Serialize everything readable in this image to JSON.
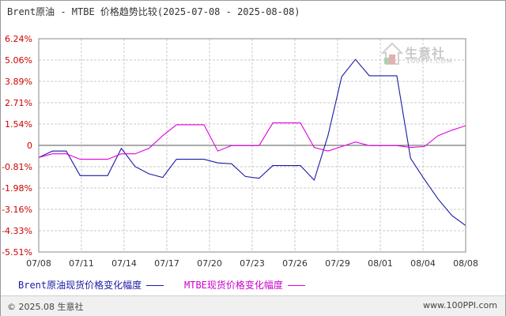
{
  "title": "Brent原油 - MTBE 价格趋势比较(2025-07-08 - 2025-08-08)",
  "footer": {
    "copyright": "© 2025.08 生意社",
    "website": "www.100PPI.com"
  },
  "watermark": {
    "name": "生意社",
    "sub": "100PPI.COM"
  },
  "colors": {
    "brent": "#1a1aa6",
    "mtbe": "#e000e0",
    "grid": "#c8c8c8",
    "zero_line": "#555555"
  },
  "chart_data": {
    "type": "line",
    "title": "Brent原油 - MTBE 价格趋势比较(2025-07-08 - 2025-08-08)",
    "x_ticks": [
      "07/08",
      "07/11",
      "07/14",
      "07/17",
      "07/20",
      "07/23",
      "07/26",
      "07/29",
      "08/01",
      "08/04",
      "08/08"
    ],
    "y_ticks": [
      "6.24%",
      "5.06%",
      "3.89%",
      "2.71%",
      "1.54%",
      "0",
      "-0.81%",
      "-1.98%",
      "-3.16%",
      "-4.33%",
      "-5.51%"
    ],
    "ylim": [
      -5.51,
      6.24
    ],
    "xlim": [
      "2025-07-08",
      "2025-08-08"
    ],
    "grid": true,
    "legend_position": "bottom",
    "series": [
      {
        "name": "Brent原油现货价格变化幅度",
        "color": "#1a1aa6",
        "points": [
          [
            "2025-07-08",
            -0.3
          ],
          [
            "2025-07-09",
            0.05
          ],
          [
            "2025-07-10",
            0.05
          ],
          [
            "2025-07-11",
            -1.3
          ],
          [
            "2025-07-12",
            -1.3
          ],
          [
            "2025-07-13",
            -1.3
          ],
          [
            "2025-07-14",
            0.2
          ],
          [
            "2025-07-15",
            -0.8
          ],
          [
            "2025-07-16",
            -1.2
          ],
          [
            "2025-07-17",
            -1.4
          ],
          [
            "2025-07-18",
            -0.4
          ],
          [
            "2025-07-19",
            -0.4
          ],
          [
            "2025-07-20",
            -0.4
          ],
          [
            "2025-07-21",
            -0.6
          ],
          [
            "2025-07-22",
            -0.65
          ],
          [
            "2025-07-23",
            -1.35
          ],
          [
            "2025-07-24",
            -1.45
          ],
          [
            "2025-07-25",
            -0.75
          ],
          [
            "2025-07-26",
            -0.75
          ],
          [
            "2025-07-27",
            -0.75
          ],
          [
            "2025-07-28",
            -1.55
          ],
          [
            "2025-07-29",
            0.9
          ],
          [
            "2025-07-30",
            4.15
          ],
          [
            "2025-07-31",
            5.1
          ],
          [
            "2025-08-01",
            4.2
          ],
          [
            "2025-08-02",
            4.2
          ],
          [
            "2025-08-03",
            4.2
          ],
          [
            "2025-08-04",
            -0.35
          ],
          [
            "2025-08-05",
            -1.5
          ],
          [
            "2025-08-06",
            -2.6
          ],
          [
            "2025-08-07",
            -3.5
          ],
          [
            "2025-08-08",
            -4.05
          ],
          [
            "2025-08-09",
            -4.5
          ]
        ]
      },
      {
        "name": "MTBE现货价格变化幅度",
        "color": "#e000e0",
        "points": [
          [
            "2025-07-08",
            -0.3
          ],
          [
            "2025-07-09",
            -0.1
          ],
          [
            "2025-07-10",
            -0.1
          ],
          [
            "2025-07-11",
            -0.4
          ],
          [
            "2025-07-12",
            -0.4
          ],
          [
            "2025-07-13",
            -0.4
          ],
          [
            "2025-07-14",
            -0.1
          ],
          [
            "2025-07-15",
            -0.1
          ],
          [
            "2025-07-16",
            0.2
          ],
          [
            "2025-07-17",
            0.9
          ],
          [
            "2025-07-18",
            1.5
          ],
          [
            "2025-07-19",
            1.5
          ],
          [
            "2025-07-20",
            1.5
          ],
          [
            "2025-07-21",
            0.05
          ],
          [
            "2025-07-22",
            0.35
          ],
          [
            "2025-07-23",
            0.35
          ],
          [
            "2025-07-24",
            0.35
          ],
          [
            "2025-07-25",
            1.6
          ],
          [
            "2025-07-26",
            1.6
          ],
          [
            "2025-07-27",
            1.6
          ],
          [
            "2025-07-28",
            0.25
          ],
          [
            "2025-07-29",
            0.05
          ],
          [
            "2025-07-30",
            0.3
          ],
          [
            "2025-07-31",
            0.55
          ],
          [
            "2025-08-01",
            0.35
          ],
          [
            "2025-08-02",
            0.35
          ],
          [
            "2025-08-03",
            0.35
          ],
          [
            "2025-08-04",
            0.25
          ],
          [
            "2025-08-05",
            0.3
          ],
          [
            "2025-08-06",
            0.9
          ],
          [
            "2025-08-07",
            1.2
          ],
          [
            "2025-08-08",
            1.45
          ],
          [
            "2025-08-09",
            1.8
          ]
        ]
      }
    ]
  }
}
